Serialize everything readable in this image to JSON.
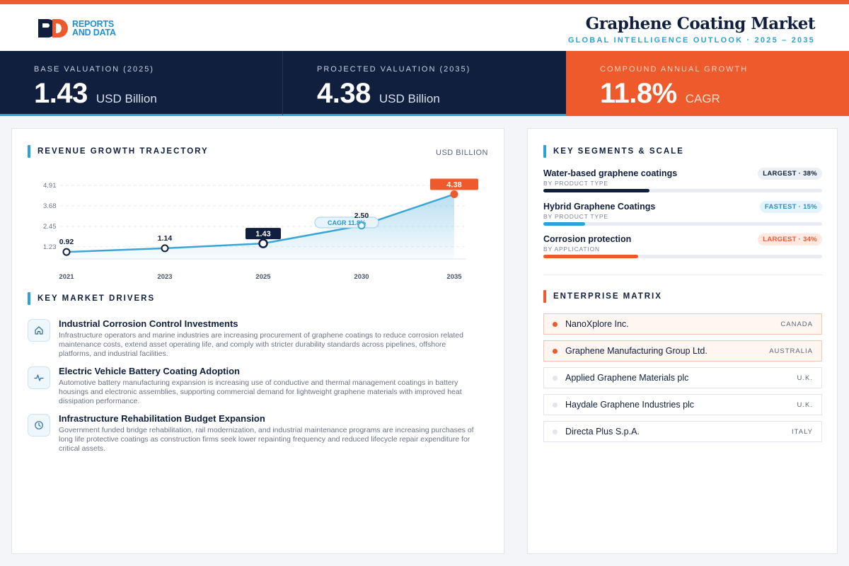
{
  "brand": {
    "line1": "REPORTS",
    "line2": "AND DATA"
  },
  "header": {
    "title": "Graphene Coating Market",
    "subtitle": "GLOBAL INTELLIGENCE OUTLOOK  ·  2025 – 2035"
  },
  "kpis": [
    {
      "label": "BASE VALUATION (2025)",
      "value": "1.43",
      "unit": "USD Billion"
    },
    {
      "label": "PROJECTED VALUATION (2035)",
      "value": "4.38",
      "unit": "USD Billion"
    },
    {
      "label": "COMPOUND ANNUAL GROWTH",
      "value": "11.8%",
      "unit": "CAGR"
    }
  ],
  "revenue": {
    "title": "REVENUE GROWTH TRAJECTORY",
    "unit": "USD BILLION"
  },
  "chart_data": {
    "type": "area",
    "title": "REVENUE GROWTH TRAJECTORY",
    "ylabel": "USD BILLION",
    "x": [
      "2021",
      "2023",
      "2025",
      "2030",
      "2035"
    ],
    "values": [
      0.92,
      1.14,
      1.43,
      2.5,
      4.38
    ],
    "value_labels": [
      "0.92",
      "1.14",
      "1.43",
      "2.50",
      "4.38"
    ],
    "y_ticks": [
      1.23,
      2.45,
      3.68,
      4.91
    ],
    "y_tick_labels": [
      "1.23",
      "2.45",
      "3.68",
      "4.91"
    ],
    "ylim": [
      1.23,
      4.91
    ],
    "annotation": "CAGR 11.8%",
    "grid": true,
    "colors": {
      "line": "#3aa6d8",
      "base_label": "#0f1f3d",
      "end_label": "#ef5a2c"
    }
  },
  "drivers": {
    "title": "KEY MARKET DRIVERS",
    "items": [
      {
        "icon": "home-icon",
        "title": "Industrial Corrosion Control Investments",
        "desc": "Infrastructure operators and marine industries are increasing procurement of graphene coatings to reduce corrosion related maintenance costs, extend asset operating life, and comply with stricter durability standards across pipelines, offshore platforms, and industrial facilities."
      },
      {
        "icon": "activity-icon",
        "title": "Electric Vehicle Battery Coating Adoption",
        "desc": "Automotive battery manufacturing expansion is increasing use of conductive and thermal management coatings in battery housings and electronic assemblies, supporting commercial demand for lightweight graphene materials with improved heat dissipation performance."
      },
      {
        "icon": "clock-icon",
        "title": "Infrastructure Rehabilitation Budget Expansion",
        "desc": "Government funded bridge rehabilitation, rail modernization, and industrial maintenance programs are increasing purchases of long life protective coatings as construction firms seek lower repainting frequency and reduced lifecycle repair expenditure for critical assets."
      }
    ]
  },
  "segments": {
    "title": "KEY SEGMENTS & SCALE",
    "items": [
      {
        "name": "Water-based graphene coatings",
        "category": "BY PRODUCT TYPE",
        "badge": "LARGEST · 38%",
        "share": 0.38,
        "color": "#0f1f3d"
      },
      {
        "name": "Hybrid Graphene Coatings",
        "category": "BY PRODUCT TYPE",
        "badge": "FASTEST · 15%",
        "share": 0.15,
        "color": "#2ba3d6"
      },
      {
        "name": "Corrosion protection",
        "category": "BY APPLICATION",
        "badge": "LARGEST · 34%",
        "share": 0.34,
        "color": "#ef5a2c"
      }
    ]
  },
  "matrix": {
    "title": "ENTERPRISE MATRIX",
    "items": [
      {
        "name": "NanoXplore Inc.",
        "country": "CANADA",
        "highlight": true
      },
      {
        "name": "Graphene Manufacturing Group Ltd.",
        "country": "AUSTRALIA",
        "highlight": true
      },
      {
        "name": "Applied Graphene Materials plc",
        "country": "U.K.",
        "highlight": false
      },
      {
        "name": "Haydale Graphene Industries plc",
        "country": "U.K.",
        "highlight": false
      },
      {
        "name": "Directa Plus S.p.A.",
        "country": "ITALY",
        "highlight": false
      }
    ]
  }
}
